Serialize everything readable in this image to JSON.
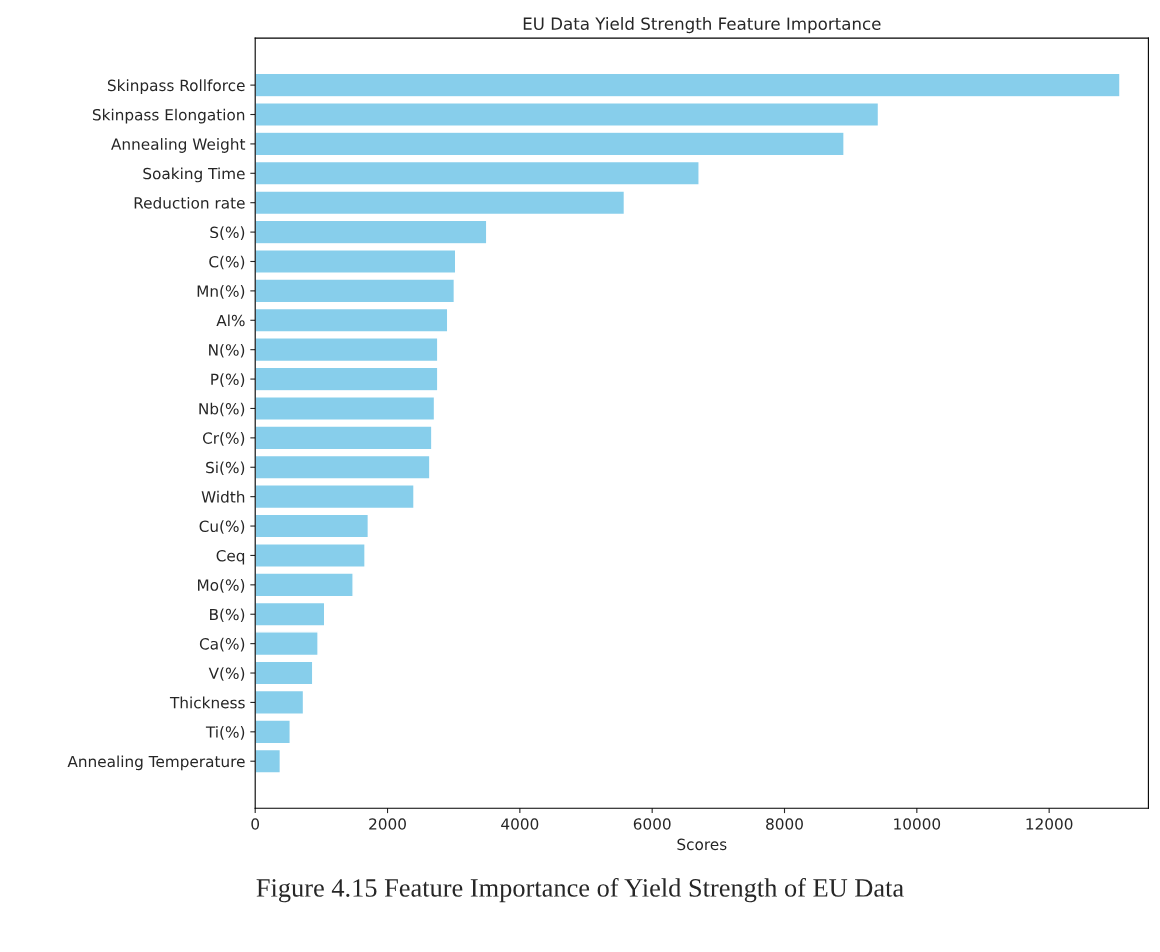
{
  "chart_data": {
    "type": "bar",
    "orientation": "horizontal",
    "title": "EU Data Yield Strength Feature Importance",
    "xlabel": "Scores",
    "categories": [
      "Skinpass Rollforce",
      "Skinpass Elongation",
      "Annealing Weight",
      "Soaking Time",
      "Reduction rate",
      "S(%)",
      "C(%)",
      "Mn(%)",
      "Al%",
      "N(%)",
      "P(%)",
      "Nb(%)",
      "Cr(%)",
      "Si(%)",
      "Width",
      "Cu(%)",
      "Ceq",
      "Mo(%)",
      "B(%)",
      "Ca(%)",
      "V(%)",
      "Thickness",
      "Ti(%)",
      "Annealing Temperature"
    ],
    "values": [
      13070,
      9420,
      8900,
      6710,
      5580,
      3500,
      3030,
      3010,
      2910,
      2760,
      2760,
      2710,
      2670,
      2640,
      2400,
      1710,
      1660,
      1480,
      1050,
      950,
      870,
      730,
      530,
      380
    ],
    "color": "#87ceeb",
    "xlim": [
      0,
      13500
    ],
    "xticks": [
      0,
      2000,
      4000,
      6000,
      8000,
      10000,
      12000
    ],
    "grid": false,
    "legend": false,
    "annotations": [
      "Figure 4.15 Feature Importance of Yield Strength of EU Data"
    ]
  }
}
